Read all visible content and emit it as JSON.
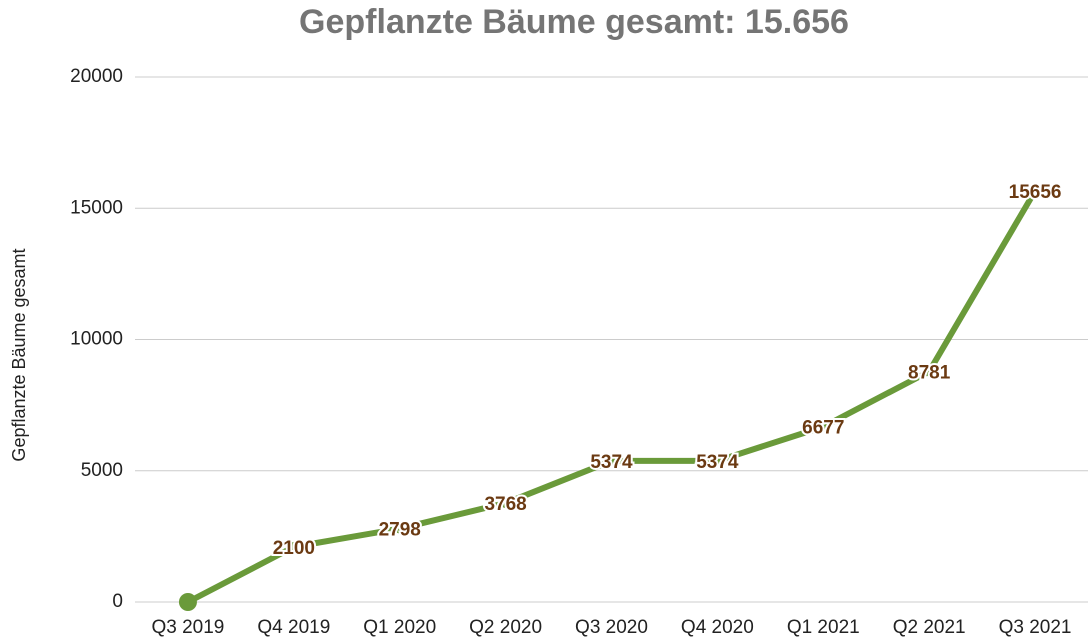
{
  "chart_data": {
    "type": "line",
    "title": "Gepflanzte Bäume gesamt: 15.656",
    "y_label": "Gepflanzte Bäume gesamt",
    "categories": [
      "Q3 2019",
      "Q4 2019",
      "Q1 2020",
      "Q2 2020",
      "Q3 2020",
      "Q4 2020",
      "Q1 2021",
      "Q2 2021",
      "Q3 2021"
    ],
    "values": [
      0,
      2100,
      2798,
      3768,
      5374,
      5374,
      6677,
      8781,
      15656
    ],
    "value_labels": [
      null,
      "2100",
      "2798",
      "3768",
      "5374",
      "5374",
      "6677",
      "8781",
      "15656"
    ],
    "color": "#6a9a3a",
    "label_color": "#6b3a12",
    "ylim": [
      0,
      20000
    ],
    "yticks": [
      0,
      5000,
      10000,
      15000,
      20000
    ],
    "grid": true
  }
}
